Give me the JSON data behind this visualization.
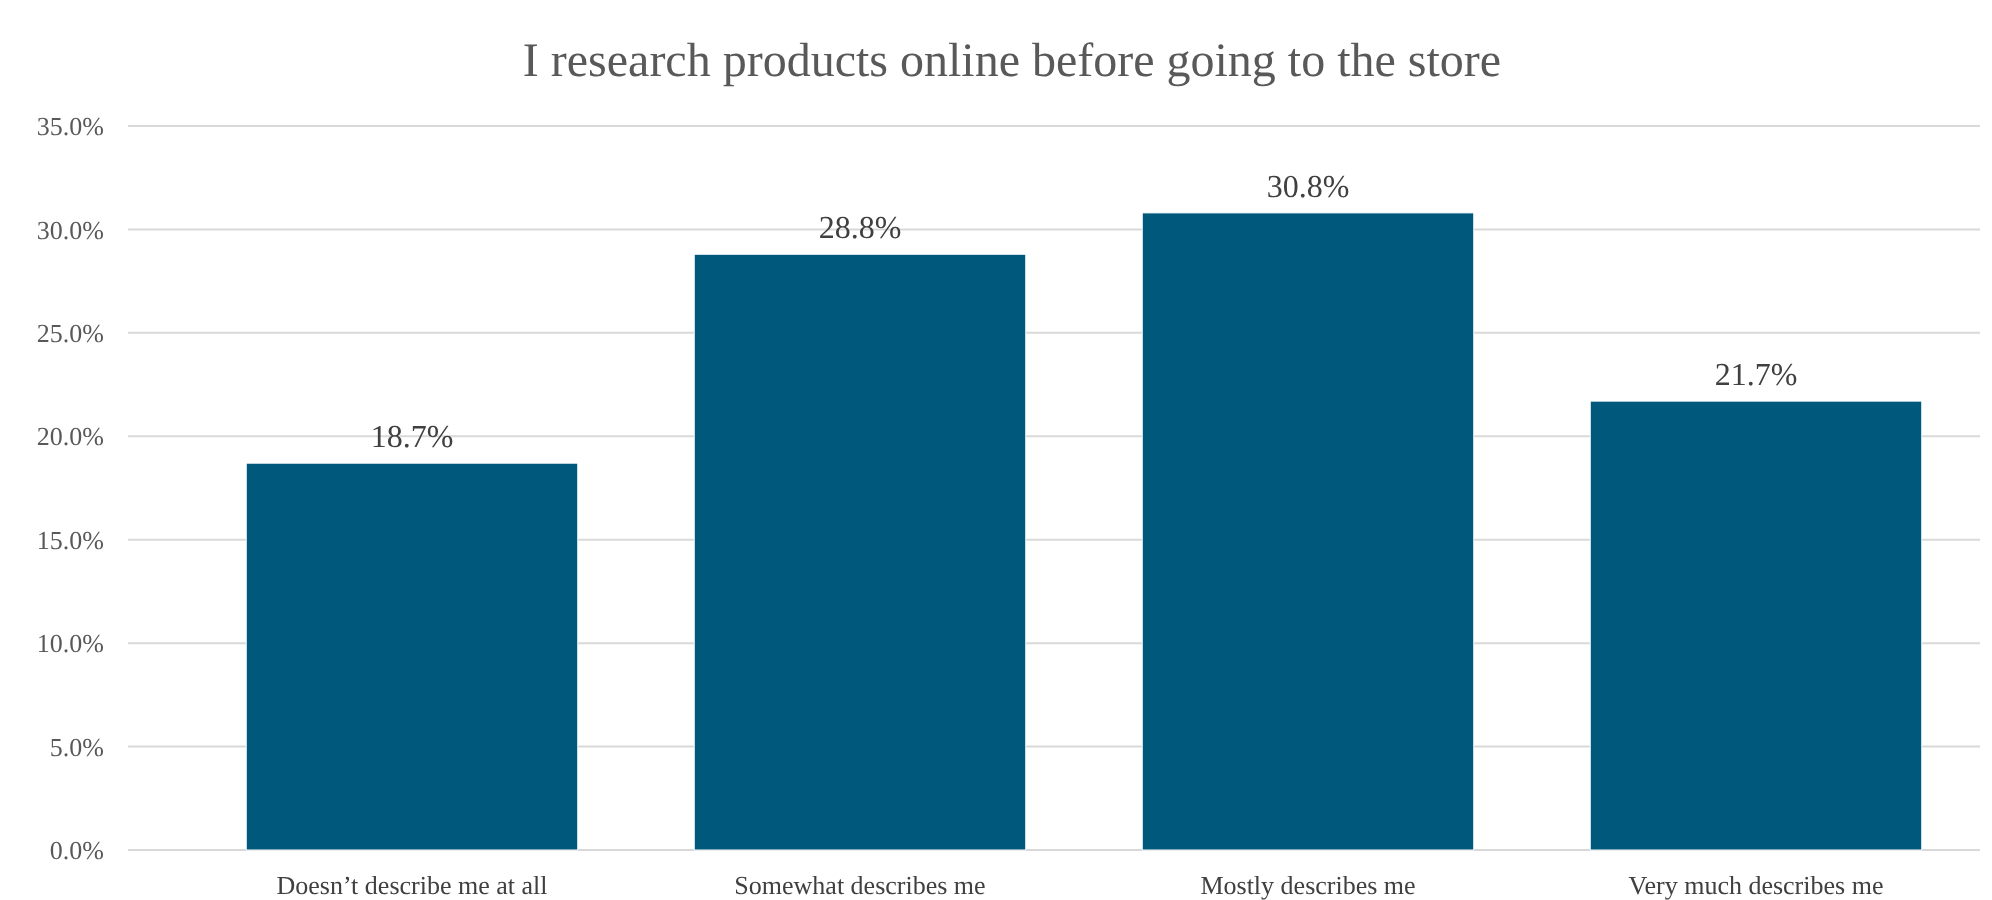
{
  "chart_data": {
    "type": "bar",
    "title": "I research products online before going to the store",
    "categories": [
      "Doesn’t describe me at all",
      "Somewhat describes me",
      "Mostly describes me",
      "Very much describes me"
    ],
    "values": [
      18.7,
      28.8,
      30.8,
      21.7
    ],
    "value_labels": [
      "18.7%",
      "28.8%",
      "30.8%",
      "21.7%"
    ],
    "color": "#00587c",
    "ylim": [
      0,
      35
    ],
    "yticks": [
      {
        "value": 0,
        "label": "0.0%"
      },
      {
        "value": 5,
        "label": "5.0%"
      },
      {
        "value": 10,
        "label": "10.0%"
      },
      {
        "value": 15,
        "label": "15.0%"
      },
      {
        "value": 20,
        "label": "20.0%"
      },
      {
        "value": 25,
        "label": "25.0%"
      },
      {
        "value": 30,
        "label": "30.0%"
      },
      {
        "value": 35,
        "label": "35.0%"
      }
    ],
    "grid": "y"
  }
}
